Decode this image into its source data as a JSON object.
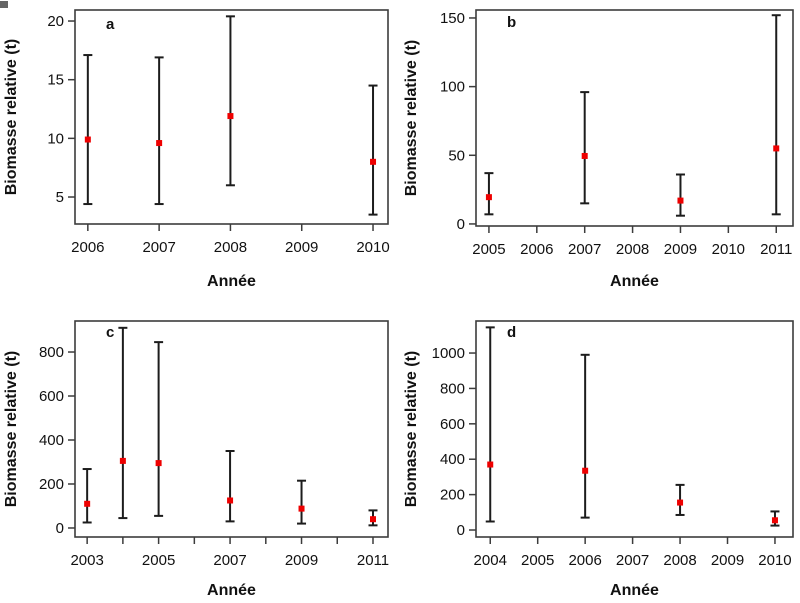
{
  "figure": {
    "background": "#ffffff",
    "axis_color": "#3c3c3c",
    "text_color": "#111111"
  },
  "chart_data": [
    {
      "type": "scatter",
      "panel_label": "a",
      "title": "",
      "xlabel": "Année",
      "ylabel": "Biomasse relative (t)",
      "marker": "square",
      "marker_color": "#ee0000",
      "errorbar_color": "#1c1c1c",
      "grid": false,
      "legend": null,
      "xlim": [
        2005.82,
        2010.21
      ],
      "ylim": [
        2.7,
        20.94
      ],
      "x_ticks": [
        {
          "v": 2006,
          "label": "2006"
        },
        {
          "v": 2007,
          "label": "2007"
        },
        {
          "v": 2008,
          "label": "2008"
        },
        {
          "v": 2009,
          "label": "2009"
        },
        {
          "v": 2010,
          "label": "2010"
        }
      ],
      "y_ticks": [
        {
          "v": 5,
          "label": "5"
        },
        {
          "v": 10,
          "label": "10"
        },
        {
          "v": 15,
          "label": "15"
        },
        {
          "v": 20,
          "label": "20"
        }
      ],
      "points": [
        {
          "x": 2006,
          "y": 9.9,
          "lo": 4.4,
          "hi": 17.1
        },
        {
          "x": 2007,
          "y": 9.6,
          "lo": 4.4,
          "hi": 16.9
        },
        {
          "x": 2008,
          "y": 11.9,
          "lo": 6.0,
          "hi": 20.4
        },
        {
          "x": 2010,
          "y": 8.0,
          "lo": 3.5,
          "hi": 14.5
        }
      ]
    },
    {
      "type": "scatter",
      "panel_label": "b",
      "title": "",
      "xlabel": "Année",
      "ylabel": "Biomasse relative (t)",
      "marker": "square",
      "marker_color": "#ee0000",
      "errorbar_color": "#1c1c1c",
      "grid": false,
      "legend": null,
      "xlim": [
        2004.73,
        2011.35
      ],
      "ylim": [
        -1.5,
        155.8
      ],
      "x_ticks": [
        {
          "v": 2005,
          "label": "2005"
        },
        {
          "v": 2006,
          "label": "2006"
        },
        {
          "v": 2007,
          "label": "2007"
        },
        {
          "v": 2008,
          "label": "2008"
        },
        {
          "v": 2009,
          "label": "2009"
        },
        {
          "v": 2010,
          "label": "2010"
        },
        {
          "v": 2011,
          "label": "2011"
        }
      ],
      "y_ticks": [
        {
          "v": 0,
          "label": "0"
        },
        {
          "v": 50,
          "label": "50"
        },
        {
          "v": 100,
          "label": "100"
        },
        {
          "v": 150,
          "label": "150"
        }
      ],
      "points": [
        {
          "x": 2005,
          "y": 19.5,
          "lo": 7,
          "hi": 37
        },
        {
          "x": 2007,
          "y": 49.5,
          "lo": 15,
          "hi": 96
        },
        {
          "x": 2009,
          "y": 17,
          "lo": 6,
          "hi": 36
        },
        {
          "x": 2011,
          "y": 55,
          "lo": 7,
          "hi": 152
        }
      ]
    },
    {
      "type": "scatter",
      "panel_label": "c",
      "title": "",
      "xlabel": "Année",
      "ylabel": "Biomasse relative (t)",
      "marker": "square",
      "marker_color": "#ee0000",
      "errorbar_color": "#1c1c1c",
      "grid": false,
      "legend": null,
      "xlim": [
        2002.66,
        2011.42
      ],
      "ylim": [
        -41,
        941
      ],
      "x_ticks": [
        {
          "v": 2003,
          "label": "2003"
        },
        {
          "v": 2004,
          "label": ""
        },
        {
          "v": 2005,
          "label": "2005"
        },
        {
          "v": 2006,
          "label": ""
        },
        {
          "v": 2007,
          "label": "2007"
        },
        {
          "v": 2008,
          "label": ""
        },
        {
          "v": 2009,
          "label": "2009"
        },
        {
          "v": 2010,
          "label": ""
        },
        {
          "v": 2011,
          "label": "2011"
        }
      ],
      "y_ticks": [
        {
          "v": 0,
          "label": "0"
        },
        {
          "v": 200,
          "label": "200"
        },
        {
          "v": 400,
          "label": "400"
        },
        {
          "v": 600,
          "label": "600"
        },
        {
          "v": 800,
          "label": "800"
        }
      ],
      "points": [
        {
          "x": 2003,
          "y": 110,
          "lo": 25,
          "hi": 268
        },
        {
          "x": 2004,
          "y": 305,
          "lo": 45,
          "hi": 910
        },
        {
          "x": 2005,
          "y": 295,
          "lo": 55,
          "hi": 845
        },
        {
          "x": 2007,
          "y": 125,
          "lo": 30,
          "hi": 350
        },
        {
          "x": 2009,
          "y": 88,
          "lo": 20,
          "hi": 215
        },
        {
          "x": 2011,
          "y": 40,
          "lo": 12,
          "hi": 80
        }
      ]
    },
    {
      "type": "scatter",
      "panel_label": "d",
      "title": "",
      "xlabel": "Année",
      "ylabel": "Biomasse relative (t)",
      "marker": "square",
      "marker_color": "#ee0000",
      "errorbar_color": "#1c1c1c",
      "grid": false,
      "legend": null,
      "xlim": [
        2003.7,
        2010.38
      ],
      "ylim": [
        -39.5,
        1181
      ],
      "x_ticks": [
        {
          "v": 2004,
          "label": "2004"
        },
        {
          "v": 2005,
          "label": "2005"
        },
        {
          "v": 2006,
          "label": "2006"
        },
        {
          "v": 2007,
          "label": "2007"
        },
        {
          "v": 2008,
          "label": "2008"
        },
        {
          "v": 2009,
          "label": "2009"
        },
        {
          "v": 2010,
          "label": "2010"
        }
      ],
      "y_ticks": [
        {
          "v": 0,
          "label": "0"
        },
        {
          "v": 200,
          "label": "200"
        },
        {
          "v": 400,
          "label": "400"
        },
        {
          "v": 600,
          "label": "600"
        },
        {
          "v": 800,
          "label": "800"
        },
        {
          "v": 1000,
          "label": "1000"
        }
      ],
      "points": [
        {
          "x": 2004,
          "y": 370,
          "lo": 48,
          "hi": 1145
        },
        {
          "x": 2006,
          "y": 335,
          "lo": 70,
          "hi": 990
        },
        {
          "x": 2008,
          "y": 155,
          "lo": 85,
          "hi": 255
        },
        {
          "x": 2010,
          "y": 55,
          "lo": 25,
          "hi": 105
        }
      ]
    }
  ]
}
